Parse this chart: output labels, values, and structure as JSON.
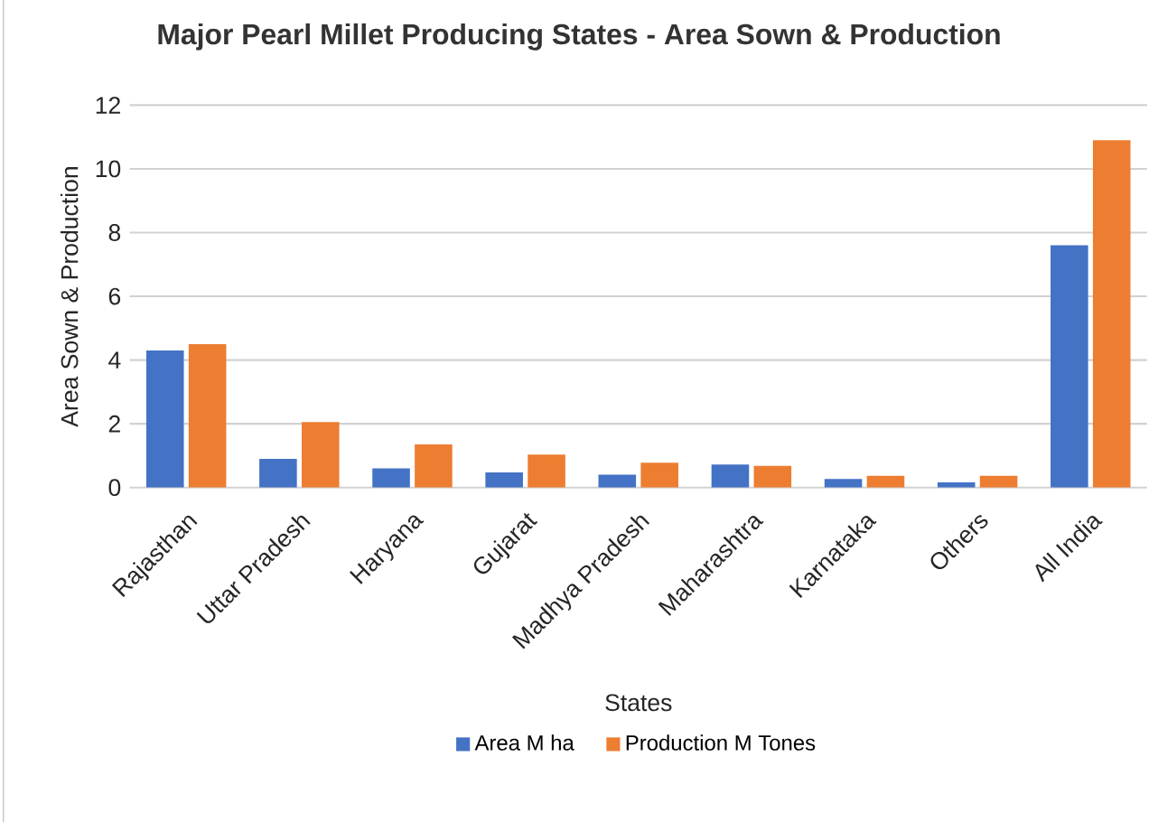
{
  "chart_data": {
    "type": "bar",
    "title": "Major Pearl Millet Producing States - Area Sown & Production",
    "xlabel": "States",
    "ylabel": "Area Sown & Production",
    "categories": [
      "Rajasthan",
      "Uttar Pradesh",
      "Haryana",
      "Gujarat",
      "Madhya Pradesh",
      "Maharashtra",
      "Karnataka",
      "Others",
      "All India"
    ],
    "series": [
      {
        "name": "Area M ha",
        "color": "#4472c4",
        "values": [
          4.3,
          0.9,
          0.6,
          0.47,
          0.4,
          0.72,
          0.27,
          0.16,
          7.6
        ]
      },
      {
        "name": "Production M Tones",
        "color": "#ed7d31",
        "values": [
          4.5,
          2.05,
          1.35,
          1.03,
          0.78,
          0.68,
          0.37,
          0.37,
          10.9
        ]
      }
    ],
    "ylim": [
      0,
      12
    ],
    "yticks": [
      0,
      2,
      4,
      6,
      8,
      10,
      12
    ],
    "grid": "y",
    "legend": "bottom"
  }
}
